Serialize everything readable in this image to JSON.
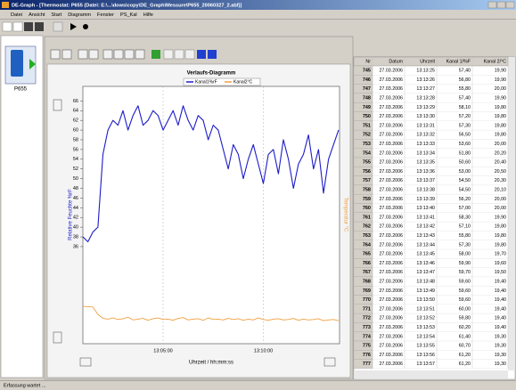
{
  "window": {
    "title": "DE-Graph - [Thermostat: P655 (Datei: E:\\...\\dows\\copy\\DE_Graph\\Messure\\P655_20060327_2.abf)]",
    "menu": [
      "Datei",
      "Ansicht",
      "Start",
      "Diagramm",
      "Fenster",
      "PS_Kal",
      "Hilfe"
    ],
    "device": "P655",
    "status": "Erfassung wartet ..."
  },
  "chart_data": {
    "type": "line",
    "title": "Verlaufs-Diagramm",
    "x_label": "Uhrzeit / hh:mm:ss",
    "y_label": "Relative Feuchte %rF",
    "y2_label": "Temperatur °C",
    "x": [
      46860,
      46875,
      46890,
      46905,
      46920,
      46935,
      46950,
      46965,
      46980,
      46995,
      47010,
      47025,
      47040,
      47055,
      47070,
      47085,
      47100,
      47115,
      47130,
      47145,
      47160,
      47175,
      47190,
      47205,
      47220,
      47235,
      47250,
      47265,
      47280,
      47295,
      47310,
      47325,
      47340,
      47355,
      47370,
      47385,
      47400,
      47415,
      47430,
      47445,
      47460,
      47475,
      47490,
      47505,
      47520,
      47535,
      47550,
      47565,
      47580,
      47595,
      47610,
      47625
    ],
    "xlim": [
      46860,
      47628
    ],
    "xticks": [
      {
        "value": 47100,
        "label": "13:05:00"
      },
      {
        "value": 47400,
        "label": "13:10:00"
      }
    ],
    "ylim": [
      16,
      69
    ],
    "yticks": [
      66,
      64,
      62,
      60,
      58,
      56,
      54,
      52,
      50,
      48,
      46,
      44,
      42,
      40,
      38,
      36
    ],
    "y2lim": [
      14,
      80
    ],
    "grid": true,
    "series": [
      {
        "name": "Kanal1%rF",
        "color": "#1c1cc8",
        "values": [
          38,
          37,
          39,
          40,
          55,
          60,
          62,
          61,
          64,
          60,
          63,
          65,
          61,
          62,
          64,
          63,
          60,
          62,
          64,
          61,
          65,
          62,
          60,
          63,
          62,
          58,
          61,
          60,
          56,
          52,
          57,
          55,
          50,
          54,
          57,
          53,
          49,
          55,
          56,
          51,
          58,
          54,
          48,
          53,
          55,
          59,
          52,
          56,
          47,
          54,
          57,
          60
        ]
      },
      {
        "name": "Kanal2°C",
        "color": "#f0a040",
        "axis": "y2",
        "values": [
          23.6,
          23.5,
          23.4,
          21.5,
          20.5,
          20.3,
          20.6,
          20.2,
          20.4,
          20.8,
          20.1,
          20.3,
          20.5,
          20.0,
          20.4,
          20.6,
          20.2,
          20.3,
          20.0,
          20.5,
          20.7,
          20.1,
          20.3,
          20.4,
          20.0,
          20.6,
          20.2,
          20.3,
          20.1,
          20.5,
          20.2,
          20.4,
          20.0,
          20.3,
          20.1,
          20.6,
          20.2,
          20.0,
          20.3,
          20.4,
          20.1,
          20.2,
          20.5,
          20.0,
          20.3,
          20.1,
          20.2,
          20.4,
          19.9,
          20.1,
          20.2,
          19.9
        ]
      }
    ]
  },
  "table": {
    "columns": [
      "Nr",
      "Datum",
      "Uhrzeit",
      "Kanal 1/%F",
      "Kanal 2/°C"
    ],
    "rows": [
      [
        "745",
        "27.03.2006",
        "13:13:25",
        "57,40",
        "19,90"
      ],
      [
        "746",
        "27.03.2006",
        "13:13:26",
        "56,80",
        "19,90"
      ],
      [
        "747",
        "27.03.2006",
        "13:13:27",
        "55,80",
        "20,00"
      ],
      [
        "748",
        "27.03.2006",
        "13:13:28",
        "57,40",
        "19,90"
      ],
      [
        "749",
        "27.03.2006",
        "13:13:29",
        "58,10",
        "19,80"
      ],
      [
        "750",
        "27.03.2006",
        "13:13:30",
        "57,20",
        "19,80"
      ],
      [
        "751",
        "27.03.2006",
        "13:13:31",
        "57,30",
        "19,80"
      ],
      [
        "752",
        "27.03.2006",
        "13:13:32",
        "56,50",
        "19,80"
      ],
      [
        "753",
        "27.03.2006",
        "13:13:33",
        "53,60",
        "20,00"
      ],
      [
        "754",
        "27.03.2006",
        "13:13:34",
        "51,80",
        "20,20"
      ],
      [
        "755",
        "27.03.2006",
        "13:13:35",
        "50,60",
        "20,40"
      ],
      [
        "756",
        "27.03.2006",
        "13:13:36",
        "53,00",
        "20,50"
      ],
      [
        "757",
        "27.03.2006",
        "13:13:37",
        "54,50",
        "20,30"
      ],
      [
        "758",
        "27.03.2006",
        "13:13:38",
        "54,50",
        "20,10"
      ],
      [
        "759",
        "27.03.2006",
        "13:13:39",
        "56,20",
        "20,00"
      ],
      [
        "760",
        "27.03.2006",
        "13:13:40",
        "57,00",
        "20,00"
      ],
      [
        "761",
        "27.03.2006",
        "13:13:41",
        "58,30",
        "19,90"
      ],
      [
        "762",
        "27.03.2006",
        "13:13:42",
        "57,10",
        "19,80"
      ],
      [
        "763",
        "27.03.2006",
        "13:13:43",
        "55,80",
        "19,80"
      ],
      [
        "764",
        "27.03.2006",
        "13:13:44",
        "57,30",
        "19,80"
      ],
      [
        "765",
        "27.03.2006",
        "13:13:45",
        "58,00",
        "19,70"
      ],
      [
        "766",
        "27.03.2006",
        "13:13:46",
        "59,90",
        "19,60"
      ],
      [
        "767",
        "27.03.2006",
        "13:13:47",
        "59,70",
        "19,50"
      ],
      [
        "768",
        "27.03.2006",
        "13:13:48",
        "59,60",
        "19,40"
      ],
      [
        "769",
        "27.03.2006",
        "13:13:49",
        "59,60",
        "19,40"
      ],
      [
        "770",
        "27.03.2006",
        "13:13:50",
        "59,60",
        "19,40"
      ],
      [
        "771",
        "27.03.2006",
        "13:13:51",
        "60,00",
        "19,40"
      ],
      [
        "772",
        "27.03.2006",
        "13:13:52",
        "59,80",
        "19,40"
      ],
      [
        "773",
        "27.03.2006",
        "13:13:53",
        "60,20",
        "19,40"
      ],
      [
        "774",
        "27.03.2006",
        "13:13:54",
        "61,40",
        "19,30"
      ],
      [
        "775",
        "27.03.2006",
        "13:13:55",
        "60,70",
        "19,30"
      ],
      [
        "776",
        "27.03.2006",
        "13:13:56",
        "61,20",
        "19,30"
      ],
      [
        "777",
        "27.03.2006",
        "13:13:57",
        "61,20",
        "19,30"
      ]
    ]
  }
}
